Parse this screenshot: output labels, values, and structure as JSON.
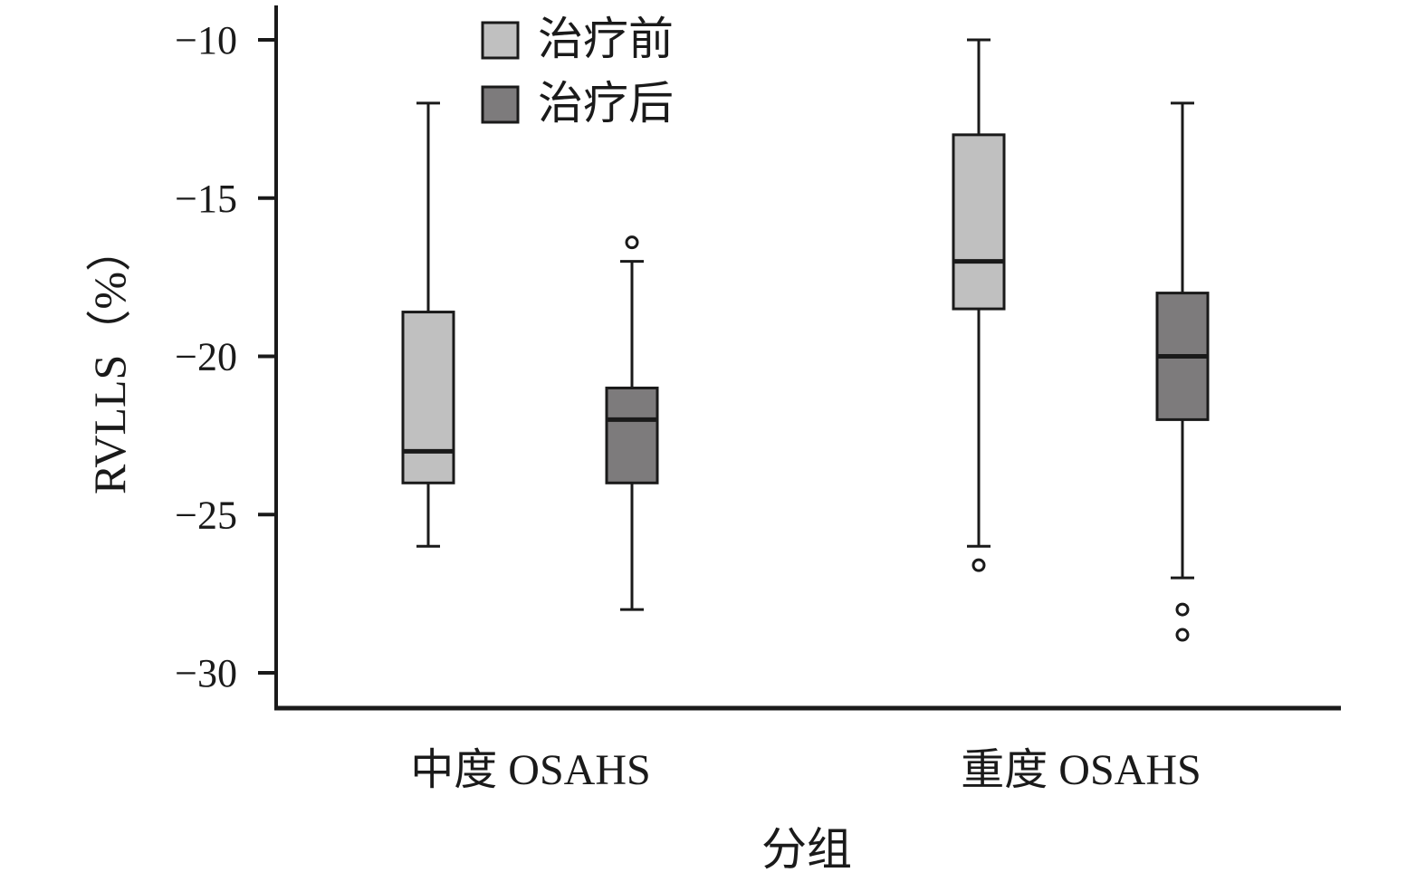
{
  "chart_data": {
    "type": "box",
    "xlabel": "分组",
    "ylabel": "RVLLS（%）",
    "ylim": [
      -31.1,
      -8.9
    ],
    "yticks": [
      -10,
      -15,
      -20,
      -25,
      -30
    ],
    "ytick_labels": [
      "−10",
      "−15",
      "−20",
      "−25",
      "−30"
    ],
    "categories": [
      "中度 OSAHS",
      "重度 OSAHS"
    ],
    "legend_position": "top-left",
    "series": [
      {
        "name": "治疗前",
        "color": "#c0c0c0",
        "boxes": [
          {
            "whisker_low": -26,
            "q1": -24,
            "median": -23,
            "q3": -18.6,
            "whisker_high": -12,
            "outliers": []
          },
          {
            "whisker_low": -26,
            "q1": -18.5,
            "median": -17,
            "q3": -13,
            "whisker_high": -10,
            "outliers": [
              -26.6
            ]
          }
        ]
      },
      {
        "name": "治疗后",
        "color": "#7d7b7c",
        "boxes": [
          {
            "whisker_low": -28,
            "q1": -24,
            "median": -22,
            "q3": -21,
            "whisker_high": -17,
            "outliers": [
              -16.4
            ]
          },
          {
            "whisker_low": -27,
            "q1": -22,
            "median": -20,
            "q3": -18,
            "whisker_high": -12,
            "outliers": [
              -28,
              -28.8
            ]
          }
        ]
      }
    ]
  }
}
